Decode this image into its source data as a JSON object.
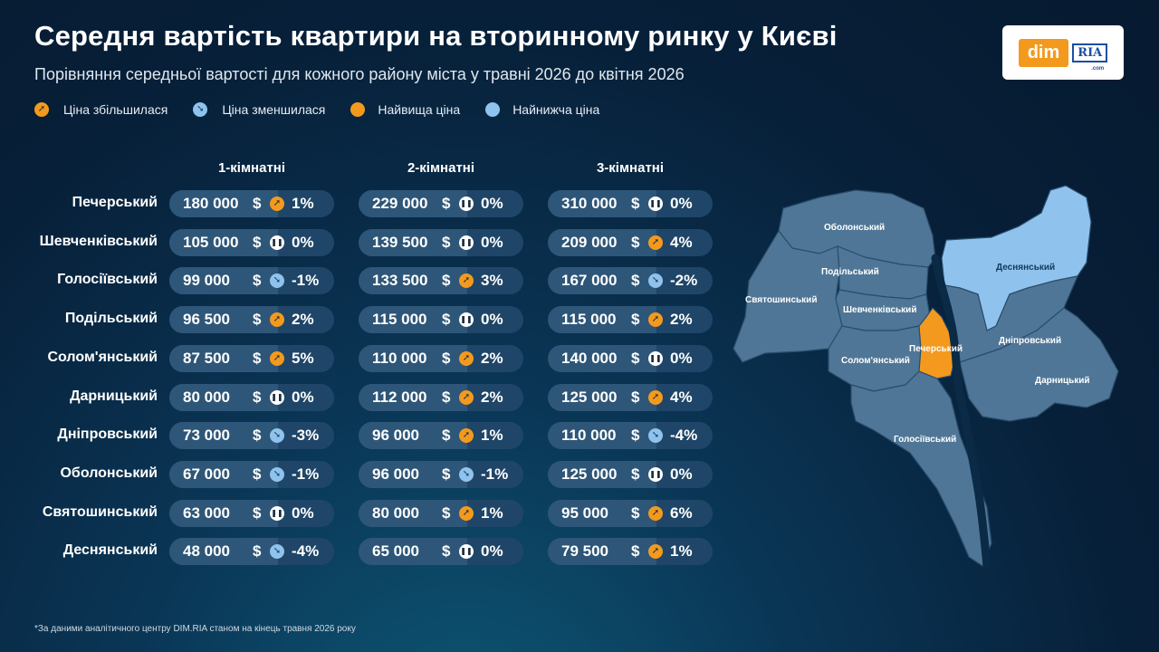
{
  "title": "Середня вартість квартири на вторинному ринку у Києві",
  "subtitle": "Порівняння середньої вартості для кожного району міста у травні 2026 до квітня 2026",
  "logo": {
    "dim": "dim",
    "ria": "RIA",
    "com": ".com"
  },
  "legend": [
    {
      "label": "Ціна збільшилася",
      "icon": "arrow-up-icon"
    },
    {
      "label": "Ціна зменшилася",
      "icon": "arrow-down-icon"
    },
    {
      "label": "Найвища ціна",
      "color": "#f39a1e"
    },
    {
      "label": "Найнижча ціна",
      "color": "#8fc3ee"
    }
  ],
  "footnote": "*За даними аналітичного центру DIM.RIA станом на кінець травня 2026 року",
  "chart_data": {
    "type": "table",
    "currency": "$",
    "columns": [
      "1-кімнатні",
      "2-кімнатні",
      "3-кімнатні"
    ],
    "rows": [
      {
        "district": "Печерський",
        "values": [
          {
            "price": "180 000",
            "change": "1%",
            "trend": "up"
          },
          {
            "price": "229 000",
            "change": "0%",
            "trend": "flat"
          },
          {
            "price": "310 000",
            "change": "0%",
            "trend": "flat"
          }
        ]
      },
      {
        "district": "Шевченківський",
        "values": [
          {
            "price": "105 000",
            "change": "0%",
            "trend": "flat"
          },
          {
            "price": "139 500",
            "change": "0%",
            "trend": "flat"
          },
          {
            "price": "209 000",
            "change": "4%",
            "trend": "up"
          }
        ]
      },
      {
        "district": "Голосіївський",
        "values": [
          {
            "price": "99 000",
            "change": "-1%",
            "trend": "down"
          },
          {
            "price": "133 500",
            "change": "3%",
            "trend": "up"
          },
          {
            "price": "167 000",
            "change": "-2%",
            "trend": "down"
          }
        ]
      },
      {
        "district": "Подільський",
        "values": [
          {
            "price": "96 500",
            "change": "2%",
            "trend": "up"
          },
          {
            "price": "115 000",
            "change": "0%",
            "trend": "flat"
          },
          {
            "price": "115 000",
            "change": "2%",
            "trend": "up"
          }
        ]
      },
      {
        "district": "Солом'янський",
        "values": [
          {
            "price": "87 500",
            "change": "5%",
            "trend": "up"
          },
          {
            "price": "110 000",
            "change": "2%",
            "trend": "up"
          },
          {
            "price": "140 000",
            "change": "0%",
            "trend": "flat"
          }
        ]
      },
      {
        "district": "Дарницький",
        "values": [
          {
            "price": "80 000",
            "change": "0%",
            "trend": "flat"
          },
          {
            "price": "112 000",
            "change": "2%",
            "trend": "up"
          },
          {
            "price": "125 000",
            "change": "4%",
            "trend": "up"
          }
        ]
      },
      {
        "district": "Дніпровський",
        "values": [
          {
            "price": "73 000",
            "change": "-3%",
            "trend": "down"
          },
          {
            "price": "96 000",
            "change": "1%",
            "trend": "up"
          },
          {
            "price": "110 000",
            "change": "-4%",
            "trend": "down"
          }
        ]
      },
      {
        "district": "Оболонський",
        "values": [
          {
            "price": "67 000",
            "change": "-1%",
            "trend": "down"
          },
          {
            "price": "96 000",
            "change": "-1%",
            "trend": "down"
          },
          {
            "price": "125 000",
            "change": "0%",
            "trend": "flat"
          }
        ]
      },
      {
        "district": "Святошинський",
        "values": [
          {
            "price": "63 000",
            "change": "0%",
            "trend": "flat"
          },
          {
            "price": "80 000",
            "change": "1%",
            "trend": "up"
          },
          {
            "price": "95 000",
            "change": "6%",
            "trend": "up"
          }
        ]
      },
      {
        "district": "Деснянський",
        "values": [
          {
            "price": "48 000",
            "change": "-4%",
            "trend": "down"
          },
          {
            "price": "65 000",
            "change": "0%",
            "trend": "flat"
          },
          {
            "price": "79 500",
            "change": "1%",
            "trend": "up"
          }
        ]
      }
    ]
  },
  "map": {
    "highest": "Печерський",
    "lowest": "Деснянський",
    "labels": [
      "Оболонський",
      "Деснянський",
      "Подільський",
      "Святошинський",
      "Шевченківський",
      "Дніпровський",
      "Печерський",
      "Солом'янський",
      "Дарницький",
      "Голосіївський"
    ],
    "colors": {
      "default": "#4f7696",
      "highest": "#f39a1e",
      "lowest": "#8fc3ee",
      "river": "#0b2a45"
    }
  }
}
